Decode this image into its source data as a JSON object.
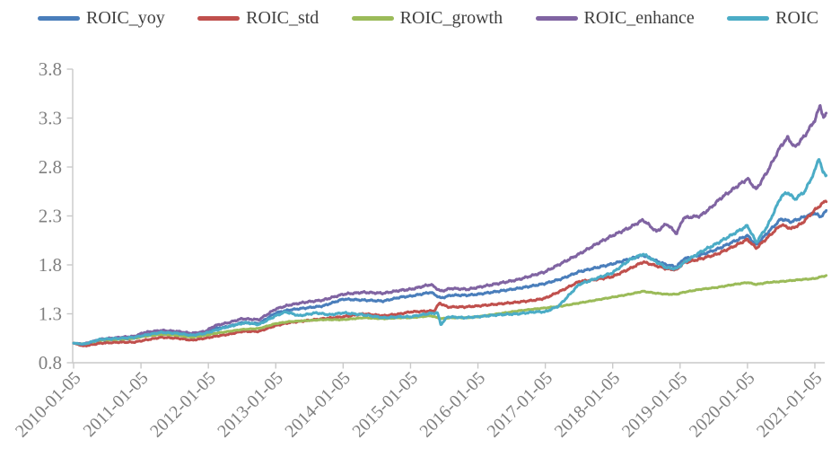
{
  "chart_data": {
    "type": "line",
    "title": "",
    "legend_position": "top",
    "grid": false,
    "x_axis": {
      "tick_labels": [
        "2010-01-05",
        "2011-01-05",
        "2012-01-05",
        "2013-01-05",
        "2014-01-05",
        "2015-01-05",
        "2016-01-05",
        "2017-01-05",
        "2018-01-05",
        "2019-01-05",
        "2020-01-05",
        "2021-01-05"
      ],
      "start": 2010.0,
      "end": 2021.17
    },
    "y_axis": {
      "ticks": [
        "0.8",
        "1.3",
        "1.8",
        "2.3",
        "2.8",
        "3.3",
        "3.8"
      ],
      "min": 0.8,
      "max": 3.8
    },
    "series": [
      {
        "name": "ROIC_yoy",
        "color": "#4a7ebb",
        "volatility": 0.011,
        "anchors": [
          [
            2010.0,
            1.0
          ],
          [
            2010.15,
            0.99
          ],
          [
            2010.4,
            1.03
          ],
          [
            2010.7,
            1.04
          ],
          [
            2010.9,
            1.05
          ],
          [
            2011.05,
            1.08
          ],
          [
            2011.3,
            1.1
          ],
          [
            2011.55,
            1.09
          ],
          [
            2011.75,
            1.07
          ],
          [
            2011.95,
            1.09
          ],
          [
            2012.1,
            1.15
          ],
          [
            2012.3,
            1.17
          ],
          [
            2012.5,
            1.21
          ],
          [
            2012.75,
            1.2
          ],
          [
            2013.0,
            1.31
          ],
          [
            2013.2,
            1.34
          ],
          [
            2013.45,
            1.36
          ],
          [
            2013.7,
            1.38
          ],
          [
            2014.0,
            1.45
          ],
          [
            2014.3,
            1.44
          ],
          [
            2014.6,
            1.43
          ],
          [
            2014.85,
            1.47
          ],
          [
            2015.0,
            1.48
          ],
          [
            2015.3,
            1.52
          ],
          [
            2015.45,
            1.46
          ],
          [
            2015.6,
            1.49
          ],
          [
            2015.85,
            1.49
          ],
          [
            2016.0,
            1.5
          ],
          [
            2016.3,
            1.53
          ],
          [
            2016.6,
            1.56
          ],
          [
            2016.85,
            1.59
          ],
          [
            2017.0,
            1.61
          ],
          [
            2017.25,
            1.66
          ],
          [
            2017.5,
            1.73
          ],
          [
            2017.75,
            1.77
          ],
          [
            2018.0,
            1.81
          ],
          [
            2018.25,
            1.86
          ],
          [
            2018.45,
            1.9
          ],
          [
            2018.65,
            1.84
          ],
          [
            2018.8,
            1.8
          ],
          [
            2018.95,
            1.78
          ],
          [
            2019.05,
            1.86
          ],
          [
            2019.3,
            1.9
          ],
          [
            2019.55,
            1.96
          ],
          [
            2019.8,
            2.04
          ],
          [
            2020.0,
            2.1
          ],
          [
            2020.13,
            2.0
          ],
          [
            2020.3,
            2.13
          ],
          [
            2020.5,
            2.27
          ],
          [
            2020.65,
            2.24
          ],
          [
            2020.8,
            2.28
          ],
          [
            2021.0,
            2.33
          ],
          [
            2021.08,
            2.29
          ],
          [
            2021.17,
            2.35
          ]
        ]
      },
      {
        "name": "ROIC_std",
        "color": "#c0504d",
        "volatility": 0.011,
        "anchors": [
          [
            2010.0,
            1.0
          ],
          [
            2010.15,
            0.97
          ],
          [
            2010.4,
            1.0
          ],
          [
            2010.7,
            1.01
          ],
          [
            2010.9,
            1.01
          ],
          [
            2011.05,
            1.03
          ],
          [
            2011.3,
            1.06
          ],
          [
            2011.55,
            1.05
          ],
          [
            2011.75,
            1.03
          ],
          [
            2011.95,
            1.05
          ],
          [
            2012.1,
            1.07
          ],
          [
            2012.3,
            1.09
          ],
          [
            2012.5,
            1.12
          ],
          [
            2012.75,
            1.12
          ],
          [
            2013.0,
            1.18
          ],
          [
            2013.2,
            1.21
          ],
          [
            2013.45,
            1.23
          ],
          [
            2013.7,
            1.25
          ],
          [
            2014.0,
            1.27
          ],
          [
            2014.3,
            1.3
          ],
          [
            2014.6,
            1.28
          ],
          [
            2014.85,
            1.3
          ],
          [
            2015.0,
            1.32
          ],
          [
            2015.35,
            1.33
          ],
          [
            2015.43,
            1.41
          ],
          [
            2015.55,
            1.37
          ],
          [
            2015.8,
            1.37
          ],
          [
            2016.0,
            1.38
          ],
          [
            2016.3,
            1.4
          ],
          [
            2016.6,
            1.42
          ],
          [
            2016.85,
            1.44
          ],
          [
            2017.0,
            1.46
          ],
          [
            2017.25,
            1.54
          ],
          [
            2017.5,
            1.63
          ],
          [
            2017.75,
            1.65
          ],
          [
            2018.0,
            1.68
          ],
          [
            2018.25,
            1.76
          ],
          [
            2018.45,
            1.83
          ],
          [
            2018.65,
            1.79
          ],
          [
            2018.8,
            1.76
          ],
          [
            2018.95,
            1.75
          ],
          [
            2019.05,
            1.82
          ],
          [
            2019.3,
            1.86
          ],
          [
            2019.55,
            1.91
          ],
          [
            2019.8,
            1.99
          ],
          [
            2020.0,
            2.06
          ],
          [
            2020.13,
            1.97
          ],
          [
            2020.3,
            2.08
          ],
          [
            2020.5,
            2.21
          ],
          [
            2020.65,
            2.17
          ],
          [
            2020.8,
            2.22
          ],
          [
            2021.0,
            2.36
          ],
          [
            2021.1,
            2.42
          ],
          [
            2021.17,
            2.46
          ]
        ]
      },
      {
        "name": "ROIC_growth",
        "color": "#9bbb59",
        "volatility": 0.006,
        "anchors": [
          [
            2010.0,
            1.0
          ],
          [
            2010.15,
            0.99
          ],
          [
            2010.4,
            1.03
          ],
          [
            2010.7,
            1.04
          ],
          [
            2010.9,
            1.05
          ],
          [
            2011.05,
            1.07
          ],
          [
            2011.3,
            1.09
          ],
          [
            2011.55,
            1.08
          ],
          [
            2011.75,
            1.06
          ],
          [
            2011.95,
            1.08
          ],
          [
            2012.1,
            1.1
          ],
          [
            2012.3,
            1.12
          ],
          [
            2012.5,
            1.14
          ],
          [
            2012.75,
            1.15
          ],
          [
            2013.0,
            1.2
          ],
          [
            2013.2,
            1.22
          ],
          [
            2013.45,
            1.23
          ],
          [
            2013.7,
            1.24
          ],
          [
            2014.0,
            1.24
          ],
          [
            2014.3,
            1.26
          ],
          [
            2014.6,
            1.25
          ],
          [
            2014.85,
            1.26
          ],
          [
            2015.0,
            1.26
          ],
          [
            2015.3,
            1.28
          ],
          [
            2015.45,
            1.25
          ],
          [
            2015.6,
            1.26
          ],
          [
            2015.85,
            1.26
          ],
          [
            2016.0,
            1.27
          ],
          [
            2016.3,
            1.3
          ],
          [
            2016.6,
            1.33
          ],
          [
            2016.85,
            1.35
          ],
          [
            2017.0,
            1.36
          ],
          [
            2017.25,
            1.38
          ],
          [
            2017.5,
            1.41
          ],
          [
            2017.75,
            1.44
          ],
          [
            2018.0,
            1.47
          ],
          [
            2018.25,
            1.5
          ],
          [
            2018.45,
            1.53
          ],
          [
            2018.65,
            1.51
          ],
          [
            2018.8,
            1.5
          ],
          [
            2018.95,
            1.5
          ],
          [
            2019.05,
            1.52
          ],
          [
            2019.3,
            1.55
          ],
          [
            2019.55,
            1.57
          ],
          [
            2019.8,
            1.6
          ],
          [
            2020.0,
            1.62
          ],
          [
            2020.13,
            1.6
          ],
          [
            2020.3,
            1.62
          ],
          [
            2020.5,
            1.63
          ],
          [
            2020.65,
            1.64
          ],
          [
            2020.8,
            1.65
          ],
          [
            2021.0,
            1.66
          ],
          [
            2021.1,
            1.68
          ],
          [
            2021.17,
            1.69
          ]
        ]
      },
      {
        "name": "ROIC_enhance",
        "color": "#8064a2",
        "volatility": 0.012,
        "anchors": [
          [
            2010.0,
            1.0
          ],
          [
            2010.15,
            0.99
          ],
          [
            2010.4,
            1.04
          ],
          [
            2010.7,
            1.06
          ],
          [
            2010.9,
            1.07
          ],
          [
            2011.05,
            1.11
          ],
          [
            2011.3,
            1.13
          ],
          [
            2011.55,
            1.12
          ],
          [
            2011.75,
            1.1
          ],
          [
            2011.95,
            1.12
          ],
          [
            2012.1,
            1.18
          ],
          [
            2012.3,
            1.21
          ],
          [
            2012.5,
            1.25
          ],
          [
            2012.75,
            1.24
          ],
          [
            2013.0,
            1.35
          ],
          [
            2013.2,
            1.39
          ],
          [
            2013.45,
            1.42
          ],
          [
            2013.7,
            1.44
          ],
          [
            2014.0,
            1.5
          ],
          [
            2014.3,
            1.52
          ],
          [
            2014.6,
            1.51
          ],
          [
            2014.85,
            1.54
          ],
          [
            2015.0,
            1.55
          ],
          [
            2015.3,
            1.6
          ],
          [
            2015.45,
            1.53
          ],
          [
            2015.6,
            1.56
          ],
          [
            2015.85,
            1.55
          ],
          [
            2016.0,
            1.57
          ],
          [
            2016.3,
            1.61
          ],
          [
            2016.6,
            1.65
          ],
          [
            2016.85,
            1.7
          ],
          [
            2017.0,
            1.73
          ],
          [
            2017.25,
            1.82
          ],
          [
            2017.5,
            1.91
          ],
          [
            2017.75,
            2.01
          ],
          [
            2018.0,
            2.1
          ],
          [
            2018.25,
            2.18
          ],
          [
            2018.45,
            2.26
          ],
          [
            2018.65,
            2.14
          ],
          [
            2018.8,
            2.22
          ],
          [
            2018.95,
            2.12
          ],
          [
            2019.05,
            2.28
          ],
          [
            2019.3,
            2.3
          ],
          [
            2019.45,
            2.38
          ],
          [
            2019.6,
            2.48
          ],
          [
            2019.8,
            2.58
          ],
          [
            2020.0,
            2.68
          ],
          [
            2020.13,
            2.57
          ],
          [
            2020.3,
            2.76
          ],
          [
            2020.5,
            3.02
          ],
          [
            2020.6,
            3.1
          ],
          [
            2020.7,
            3.0
          ],
          [
            2020.85,
            3.12
          ],
          [
            2021.0,
            3.28
          ],
          [
            2021.08,
            3.43
          ],
          [
            2021.13,
            3.3
          ],
          [
            2021.17,
            3.34
          ]
        ]
      },
      {
        "name": "ROIC",
        "color": "#4bacc6",
        "volatility": 0.012,
        "anchors": [
          [
            2010.0,
            1.0
          ],
          [
            2010.15,
            0.99
          ],
          [
            2010.4,
            1.04
          ],
          [
            2010.7,
            1.05
          ],
          [
            2010.9,
            1.06
          ],
          [
            2011.05,
            1.08
          ],
          [
            2011.3,
            1.11
          ],
          [
            2011.55,
            1.1
          ],
          [
            2011.75,
            1.08
          ],
          [
            2011.95,
            1.1
          ],
          [
            2012.1,
            1.13
          ],
          [
            2012.3,
            1.17
          ],
          [
            2012.55,
            1.21
          ],
          [
            2012.75,
            1.19
          ],
          [
            2013.0,
            1.28
          ],
          [
            2013.15,
            1.32
          ],
          [
            2013.35,
            1.28
          ],
          [
            2013.6,
            1.31
          ],
          [
            2013.8,
            1.29
          ],
          [
            2014.0,
            1.31
          ],
          [
            2014.3,
            1.29
          ],
          [
            2014.6,
            1.26
          ],
          [
            2014.85,
            1.27
          ],
          [
            2015.0,
            1.27
          ],
          [
            2015.25,
            1.3
          ],
          [
            2015.4,
            1.31
          ],
          [
            2015.45,
            1.19
          ],
          [
            2015.55,
            1.27
          ],
          [
            2015.8,
            1.26
          ],
          [
            2016.0,
            1.27
          ],
          [
            2016.3,
            1.29
          ],
          [
            2016.6,
            1.3
          ],
          [
            2016.85,
            1.32
          ],
          [
            2017.0,
            1.32
          ],
          [
            2017.2,
            1.38
          ],
          [
            2017.35,
            1.49
          ],
          [
            2017.5,
            1.6
          ],
          [
            2017.75,
            1.66
          ],
          [
            2018.0,
            1.72
          ],
          [
            2018.25,
            1.85
          ],
          [
            2018.45,
            1.91
          ],
          [
            2018.65,
            1.83
          ],
          [
            2018.8,
            1.77
          ],
          [
            2018.95,
            1.76
          ],
          [
            2019.05,
            1.82
          ],
          [
            2019.3,
            1.93
          ],
          [
            2019.55,
            2.02
          ],
          [
            2019.8,
            2.12
          ],
          [
            2020.0,
            2.2
          ],
          [
            2020.13,
            2.03
          ],
          [
            2020.3,
            2.2
          ],
          [
            2020.5,
            2.5
          ],
          [
            2020.6,
            2.54
          ],
          [
            2020.7,
            2.47
          ],
          [
            2020.85,
            2.55
          ],
          [
            2021.0,
            2.76
          ],
          [
            2021.06,
            2.9
          ],
          [
            2021.12,
            2.74
          ],
          [
            2021.17,
            2.72
          ]
        ]
      }
    ]
  },
  "colors": {
    "axis_line": "#c9c9c9",
    "tick_label": "#7f7f7f",
    "legend_text": "#3f3f3f"
  }
}
